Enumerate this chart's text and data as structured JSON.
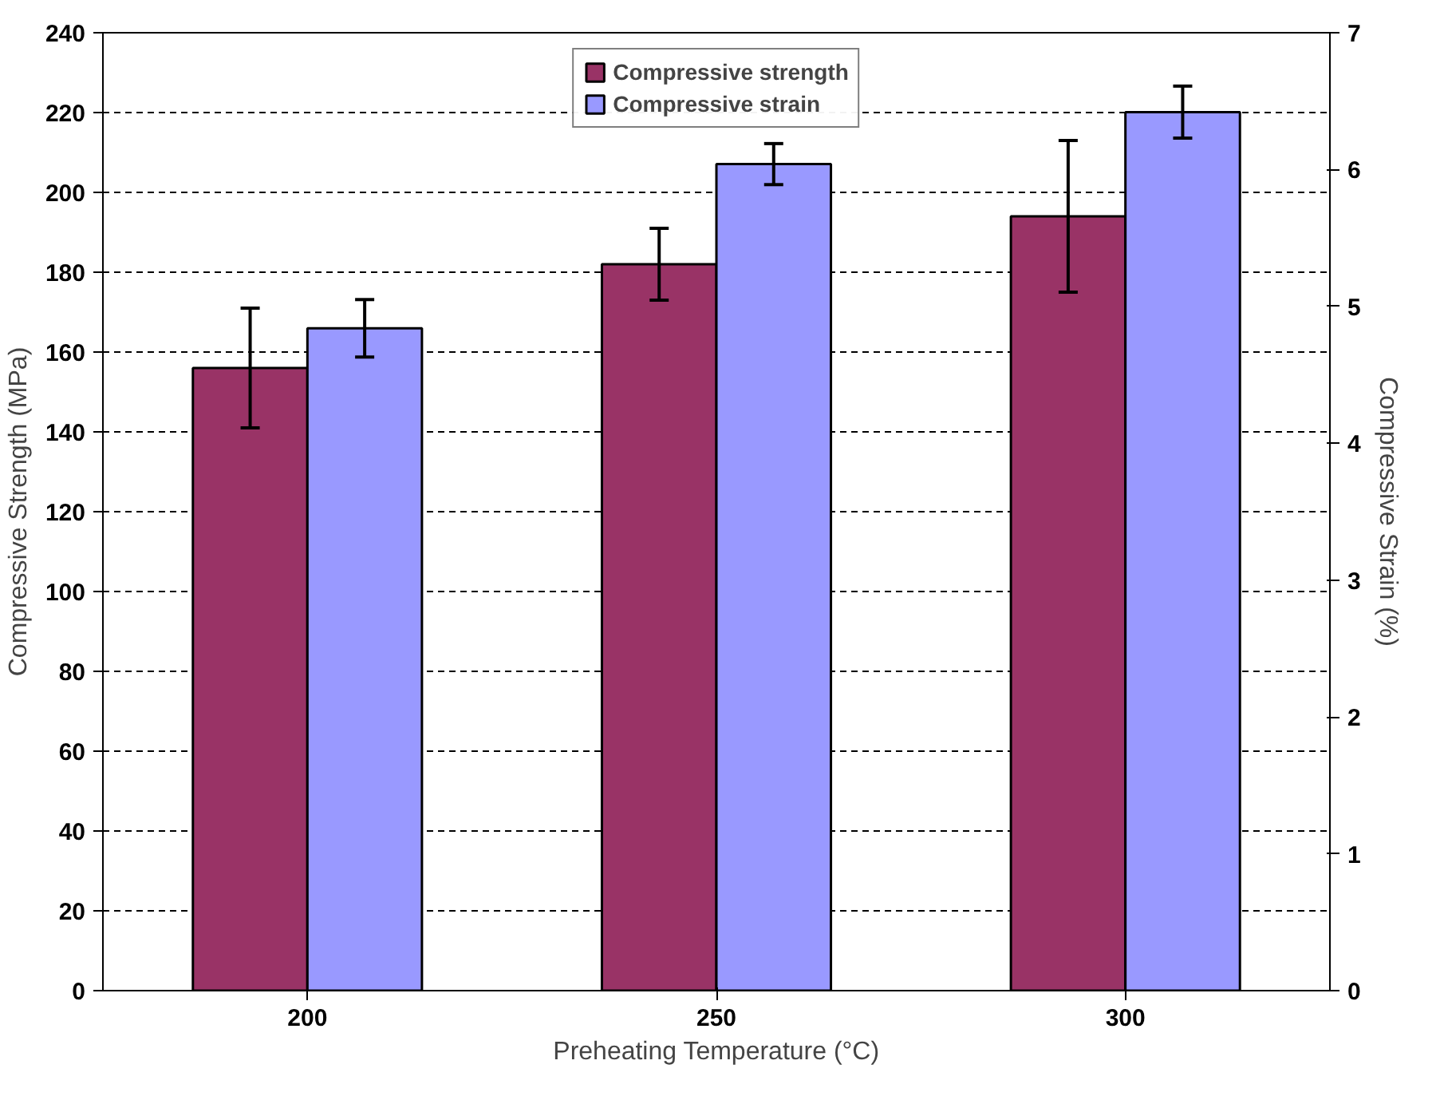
{
  "chart_data": {
    "type": "bar",
    "xlabel": "Preheating Temperature (°C)",
    "ylabel": "Compressive Strength (MPa)",
    "y2label": "Compressive Strain (%)",
    "categories": [
      "200",
      "250",
      "300"
    ],
    "series": [
      {
        "name": "Compressive strength",
        "color": "#993366",
        "values": [
          156,
          182,
          194
        ],
        "errors": [
          15,
          9,
          19
        ]
      },
      {
        "name": "Compressive strain",
        "color": "#9999ff",
        "axis": "y2",
        "values": [
          4.84,
          6.04,
          6.42
        ],
        "errors": [
          0.21,
          0.15,
          0.19
        ]
      }
    ],
    "ylim": [
      0,
      240
    ],
    "yticks": [
      0,
      20,
      40,
      60,
      80,
      100,
      120,
      140,
      160,
      180,
      200,
      220,
      240
    ],
    "y2lim": [
      0,
      7
    ],
    "y2ticks": [
      0,
      1,
      2,
      3,
      4,
      5,
      6,
      7
    ],
    "grid": "y",
    "legend": "top"
  }
}
